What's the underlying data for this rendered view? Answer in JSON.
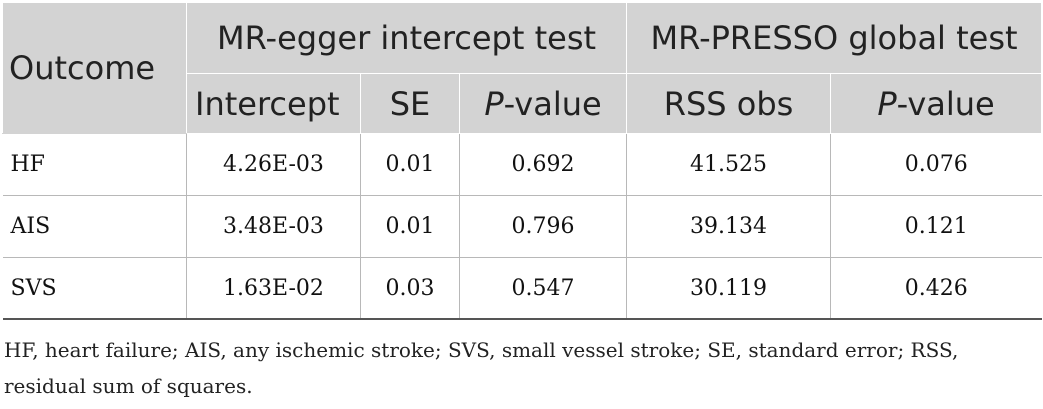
{
  "table": {
    "header_groups": {
      "outcome": "Outcome",
      "egger": "MR-egger intercept test",
      "presso": "MR-PRESSO global test"
    },
    "subheaders": {
      "intercept": "Intercept",
      "se": "SE",
      "p_egger_italic": "P",
      "p_egger_rest": "-value",
      "rss": "RSS obs",
      "p_presso_italic": "P",
      "p_presso_rest": "-value"
    },
    "rows": [
      {
        "outcome": "HF",
        "intercept": "4.26E-03",
        "se": "0.01",
        "p_egger": "0.692",
        "rss": "41.525",
        "p_presso": "0.076"
      },
      {
        "outcome": "AIS",
        "intercept": "3.48E-03",
        "se": "0.01",
        "p_egger": "0.796",
        "rss": "39.134",
        "p_presso": "0.121"
      },
      {
        "outcome": "SVS",
        "intercept": "1.63E-02",
        "se": "0.03",
        "p_egger": "0.547",
        "rss": "30.119",
        "p_presso": "0.426"
      }
    ]
  },
  "footnote": "HF, heart failure; AIS, any ischemic stroke; SVS, small vessel stroke; SE, standard error; RSS, residual sum of squares.",
  "colors": {
    "header_bg": "#d3d3d3",
    "text": "#111111"
  }
}
